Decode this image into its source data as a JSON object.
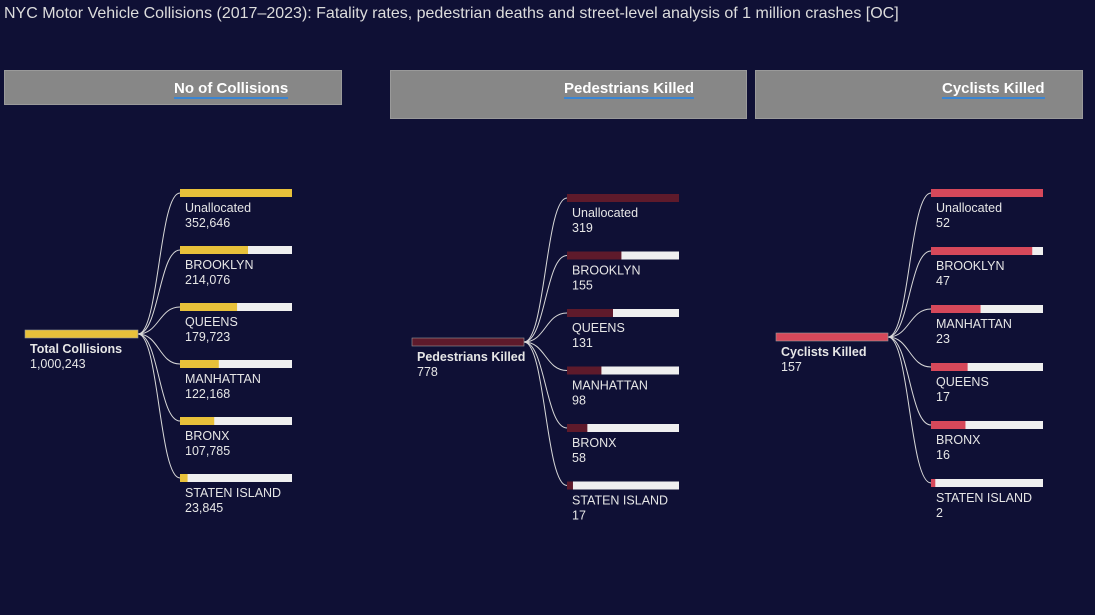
{
  "title": "NYC Motor Vehicle Collisions (2017–2023): Fatality rates, pedestrian deaths and street-level analysis of 1 million crashes [OC]",
  "chart_data": [
    {
      "type": "decomposition-tree",
      "header": "No of Collisions",
      "root": {
        "label": "Total Collisions",
        "value": 1000243,
        "display": "1,000,243"
      },
      "color": "#e8c13a",
      "children": [
        {
          "label": "Unallocated",
          "value": 352646,
          "display": "352,646"
        },
        {
          "label": "BROOKLYN",
          "value": 214076,
          "display": "214,076"
        },
        {
          "label": "QUEENS",
          "value": 179723,
          "display": "179,723"
        },
        {
          "label": "MANHATTAN",
          "value": 122168,
          "display": "122,168"
        },
        {
          "label": "BRONX",
          "value": 107785,
          "display": "107,785"
        },
        {
          "label": "STATEN ISLAND",
          "value": 23845,
          "display": "23,845"
        }
      ]
    },
    {
      "type": "decomposition-tree",
      "header": "Pedestrians Killed",
      "root": {
        "label": "Pedestrians Killed",
        "value": 778,
        "display": "778"
      },
      "color": "#5e1a2b",
      "children": [
        {
          "label": "Unallocated",
          "value": 319,
          "display": "319"
        },
        {
          "label": "BROOKLYN",
          "value": 155,
          "display": "155"
        },
        {
          "label": "QUEENS",
          "value": 131,
          "display": "131"
        },
        {
          "label": "MANHATTAN",
          "value": 98,
          "display": "98"
        },
        {
          "label": "BRONX",
          "value": 58,
          "display": "58"
        },
        {
          "label": "STATEN ISLAND",
          "value": 17,
          "display": "17"
        }
      ]
    },
    {
      "type": "decomposition-tree",
      "header": "Cyclists Killed",
      "root": {
        "label": "Cyclists Killed",
        "value": 157,
        "display": "157"
      },
      "color": "#d6485a",
      "children": [
        {
          "label": "Unallocated",
          "value": 52,
          "display": "52"
        },
        {
          "label": "BROOKLYN",
          "value": 47,
          "display": "47"
        },
        {
          "label": "MANHATTAN",
          "value": 23,
          "display": "23"
        },
        {
          "label": "QUEENS",
          "value": 17,
          "display": "17"
        },
        {
          "label": "BRONX",
          "value": 16,
          "display": "16"
        },
        {
          "label": "STATEN ISLAND",
          "value": 2,
          "display": "2"
        }
      ]
    }
  ]
}
